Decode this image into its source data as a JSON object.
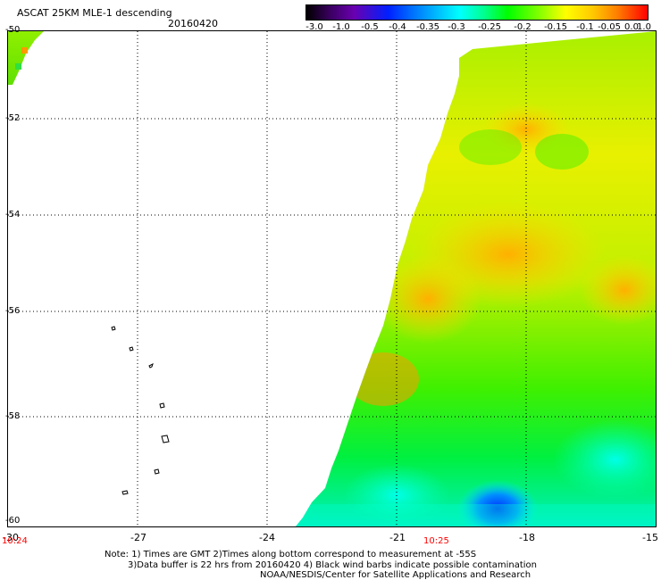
{
  "header": {
    "title": "ASCAT 25KM MLE-1 descending",
    "date": "20160420"
  },
  "colorbar": {
    "labels": [
      "-3.0",
      "-1.0",
      "-0.5",
      "-0.4",
      "-0.35",
      "-0.3",
      "-0.25",
      "-0.2",
      "-0.15",
      "-0.1",
      "-0.05",
      "0.0",
      "1.0"
    ],
    "colors": [
      "#000000",
      "#3a0060",
      "#6a00b0",
      "#0020ff",
      "#0070ff",
      "#00b8ff",
      "#00ffff",
      "#00ff90",
      "#00ff00",
      "#80ff00",
      "#ffff00",
      "#ffc800",
      "#ff8000",
      "#ff0000"
    ]
  },
  "axes": {
    "y_labels": [
      "-50",
      "-52",
      "-54",
      "-56",
      "-58",
      "-60"
    ],
    "x_labels": [
      "-30",
      "-27",
      "-24",
      "-21",
      "-18",
      "-15"
    ]
  },
  "times": {
    "left": "10:24",
    "middle": "10:25"
  },
  "notes": {
    "line1": "Note: 1) Times are GMT 2)Times along bottom correspond to measurement at -55S",
    "line2": "3)Data buffer is 22 hrs from 20160420 4) Black wind barbs indicate possible contamination",
    "line3": "NOAA/NESDIS/Center for Satellite Applications and Research"
  }
}
